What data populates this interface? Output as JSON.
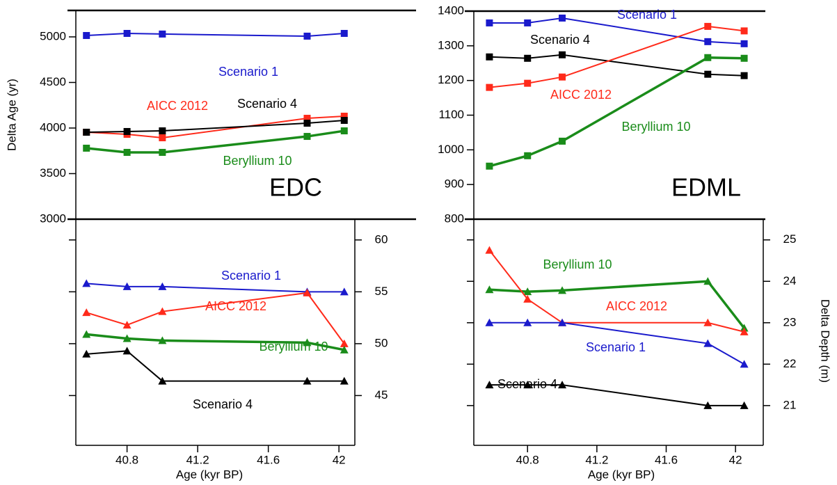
{
  "chart_data": [
    {
      "type": "line",
      "marker": "square",
      "y_label": "Delta Age (yr)",
      "annotation": "EDC",
      "xlim": [
        40.51,
        42.09
      ],
      "ylim": [
        3000,
        5290
      ],
      "yticks": [
        3000,
        3500,
        4000,
        4500,
        5000
      ],
      "yaxis_side": "left",
      "x": [
        40.57,
        40.8,
        41.0,
        41.82,
        42.03
      ],
      "series": [
        {
          "name": "Scenario 1",
          "color": "#1a1acc",
          "values": [
            5015,
            5038,
            5031,
            5008,
            5038
          ]
        },
        {
          "name": "AICC 2012",
          "color": "#ff2a1a",
          "values": [
            3954,
            3931,
            3893,
            4107,
            4130
          ]
        },
        {
          "name": "Scenario 4",
          "color": "#000000",
          "values": [
            3954,
            3962,
            3969,
            4053,
            4084
          ]
        },
        {
          "name": "Beryllium 10",
          "color": "#1a8c1a",
          "values": [
            3779,
            3733,
            3733,
            3908,
            3969
          ]
        }
      ]
    },
    {
      "type": "line",
      "marker": "triangle",
      "x_label": "Age (kyr BP)",
      "xlim": [
        40.51,
        42.09
      ],
      "xticks": [
        40.8,
        41.2,
        41.6,
        42.0
      ],
      "ylim": [
        40.2,
        62
      ],
      "yticks": [
        45,
        50,
        55,
        60
      ],
      "yaxis_side": "right",
      "x": [
        40.57,
        40.8,
        41.0,
        41.82,
        42.03
      ],
      "series": [
        {
          "name": "Scenario 1",
          "color": "#1a1acc",
          "values": [
            55.8,
            55.5,
            55.5,
            55,
            55
          ]
        },
        {
          "name": "AICC 2012",
          "color": "#ff2a1a",
          "values": [
            53.0,
            51.8,
            53.1,
            54.9,
            50
          ]
        },
        {
          "name": "Beryllium 10",
          "color": "#1a8c1a",
          "values": [
            50.9,
            50.5,
            50.3,
            50.1,
            49.4
          ]
        },
        {
          "name": "Scenario 4",
          "color": "#000000",
          "values": [
            49.0,
            49.3,
            46.4,
            46.4,
            46.4
          ]
        }
      ]
    },
    {
      "type": "line",
      "marker": "square",
      "annotation": "EDML",
      "xlim": [
        40.49,
        42.16
      ],
      "ylim": [
        800,
        1400
      ],
      "yticks": [
        800,
        900,
        1000,
        1100,
        1200,
        1300,
        1400
      ],
      "yaxis_side": "left",
      "x": [
        40.58,
        40.8,
        41.0,
        41.84,
        42.05
      ],
      "series": [
        {
          "name": "Scenario 1",
          "color": "#1a1acc",
          "values": [
            1366,
            1366,
            1380,
            1312,
            1306
          ]
        },
        {
          "name": "Scenario 4",
          "color": "#000000",
          "values": [
            1268,
            1264,
            1274,
            1218,
            1214
          ]
        },
        {
          "name": "AICC 2012",
          "color": "#ff2a1a",
          "values": [
            1180,
            1192,
            1210,
            1356,
            1343
          ]
        },
        {
          "name": "Beryllium 10",
          "color": "#1a8c1a",
          "values": [
            953,
            983,
            1025,
            1266,
            1264
          ]
        }
      ]
    },
    {
      "type": "line",
      "marker": "triangle",
      "x_label": "Age (kyr BP)",
      "y_label": "Delta Depth (m)",
      "xlim": [
        40.49,
        42.16
      ],
      "xticks": [
        40.8,
        41.2,
        41.6,
        42.0
      ],
      "ylim": [
        20.04,
        25.5
      ],
      "yticks": [
        21,
        22,
        23,
        24,
        25
      ],
      "yaxis_side": "right",
      "x": [
        40.58,
        40.8,
        41.0,
        41.84,
        42.05
      ],
      "series": [
        {
          "name": "Beryllium 10",
          "color": "#1a8c1a",
          "values": [
            23.8,
            23.75,
            23.78,
            24,
            22.87
          ]
        },
        {
          "name": "AICC 2012",
          "color": "#ff2a1a",
          "values": [
            24.75,
            23.57,
            23,
            23,
            22.78
          ]
        },
        {
          "name": "Scenario 1",
          "color": "#1a1acc",
          "values": [
            23,
            23,
            23,
            22.5,
            22
          ]
        },
        {
          "name": "Scenario 4",
          "color": "#000000",
          "values": [
            21.5,
            21.5,
            21.5,
            21,
            21
          ]
        }
      ]
    }
  ]
}
